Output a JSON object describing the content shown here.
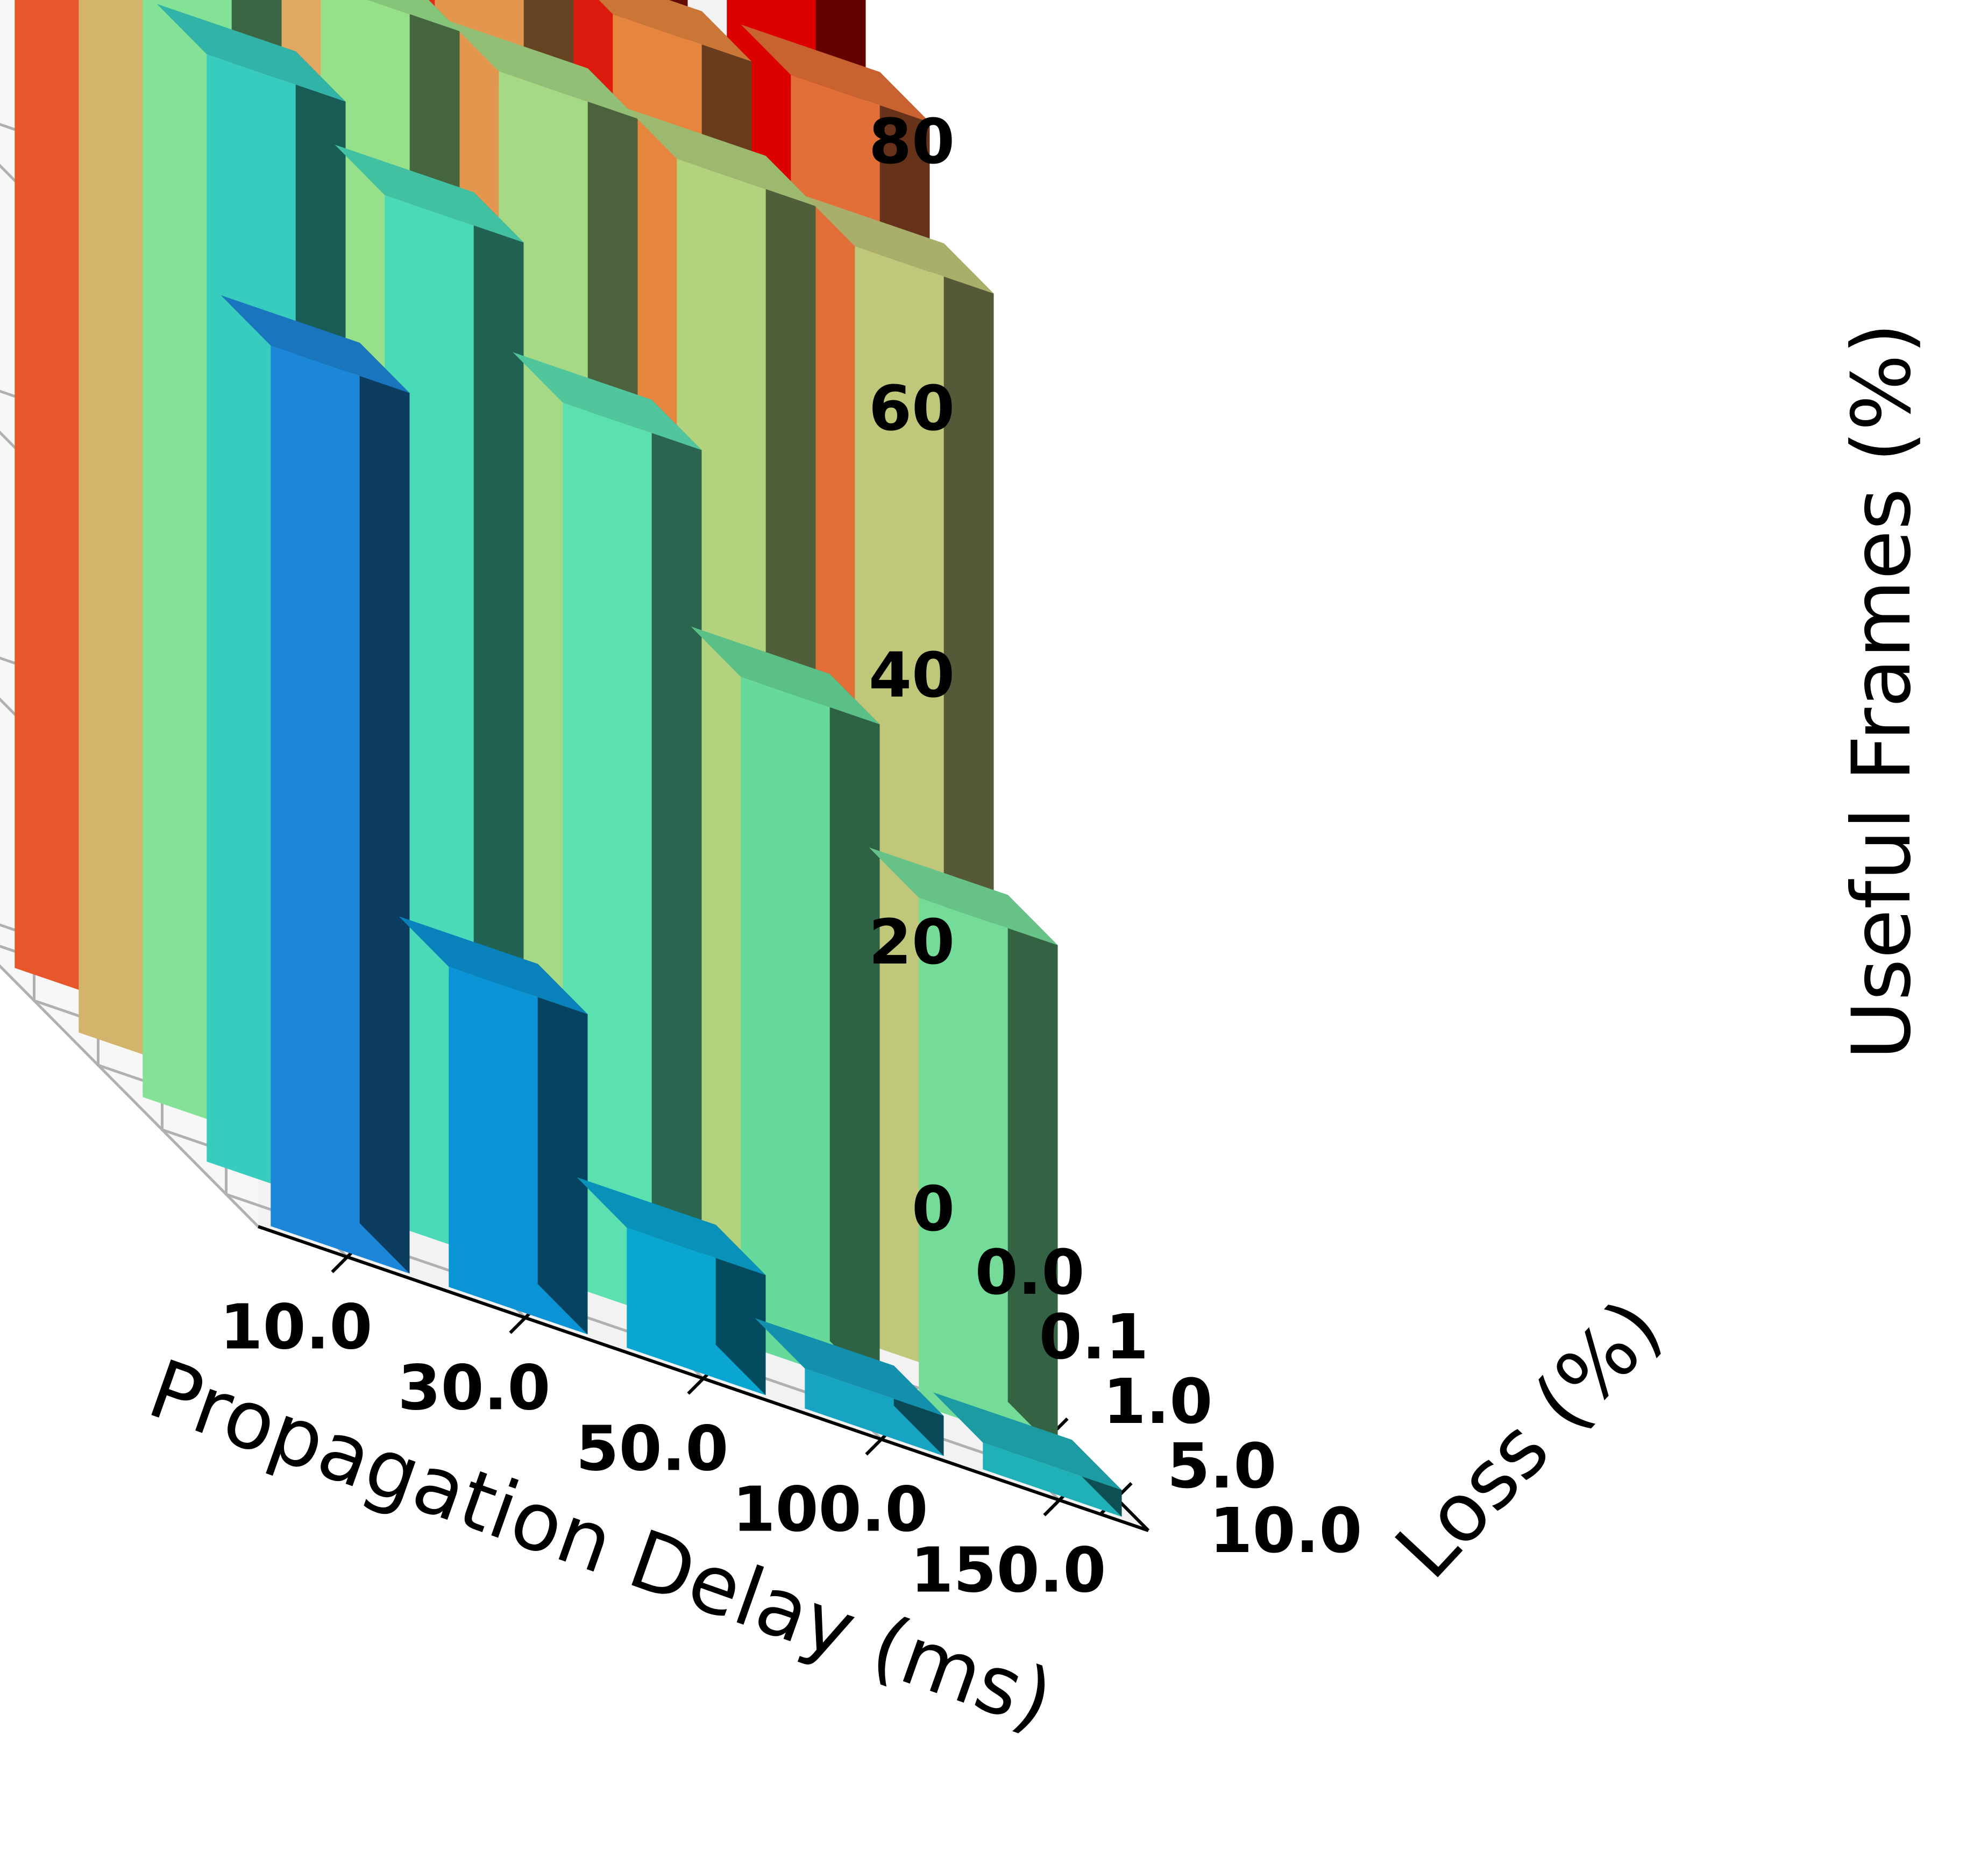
{
  "chart_data": {
    "type": "bar3d",
    "x_categories": [
      "10.0",
      "30.0",
      "50.0",
      "100.0",
      "150.0"
    ],
    "y_categories": [
      "0.0",
      "0.1",
      "1.0",
      "5.0",
      "10.0"
    ],
    "z_ticks": [
      0,
      20,
      40,
      60,
      80
    ],
    "zlim": [
      0,
      100
    ],
    "xlabel": "Propagation Delay (ms)",
    "ylabel": "Loss (%)",
    "zlabel": "Useful Frames (%)",
    "grid": true,
    "values": [
      [
        95,
        95,
        95,
        95,
        95
      ],
      [
        92,
        91,
        91,
        90,
        90
      ],
      [
        90,
        88,
        86,
        84,
        82
      ],
      [
        83,
        77,
        66,
        50,
        38
      ],
      [
        66,
        24,
        9,
        3,
        2
      ]
    ],
    "value_layout": "values[loss_index][delay_index]",
    "colors": [
      [
        "#e8572c",
        "#e43f22",
        "#e02c18",
        "#dd1a0e",
        "#dd0000"
      ],
      [
        "#d4b46a",
        "#e0a862",
        "#e3974e",
        "#e6863e",
        "#e36f38"
      ],
      [
        "#84e296",
        "#96e08a",
        "#a6d985",
        "#b2d27e",
        "#c0c67a"
      ],
      [
        "#38ccbe",
        "#4bdab8",
        "#5ce0b0",
        "#66da9a",
        "#74dc98"
      ],
      [
        "#1c86d8",
        "#0a94d6",
        "#0aa6d2",
        "#16a4c2",
        "#20b0b8"
      ]
    ]
  }
}
